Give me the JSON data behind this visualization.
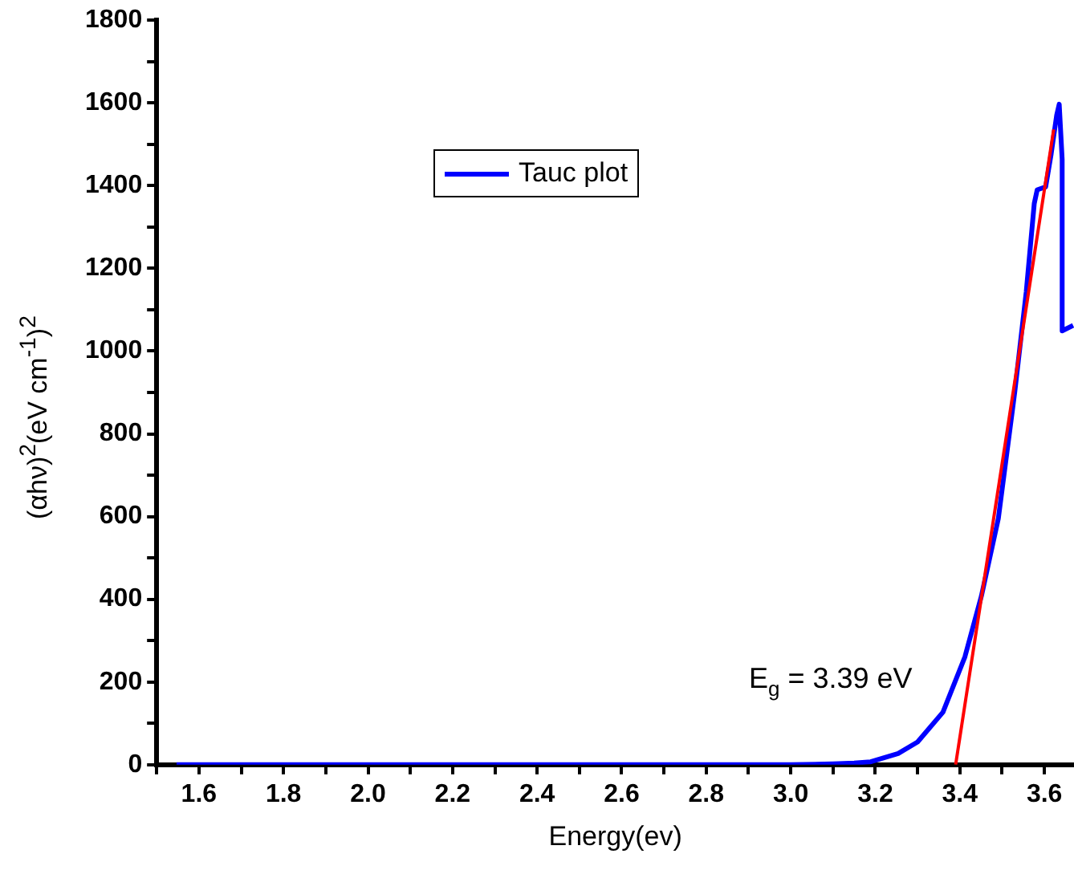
{
  "chart_data": {
    "type": "line",
    "xlabel": "Energy(ev)",
    "ylabel": "(αhν)$^{2}$(eV cm$^{-1}$)$^{2}$",
    "xlim": [
      1.5,
      3.67
    ],
    "ylim": [
      0,
      1800
    ],
    "xticks": [
      {
        "value": 1.5,
        "label": null
      },
      1.6,
      {
        "value": 1.7,
        "label": null
      },
      1.8,
      {
        "value": 1.9,
        "label": null
      },
      {
        "value": 2.0,
        "label": "2.0"
      },
      {
        "value": 2.1,
        "label": null
      },
      2.2,
      {
        "value": 2.3,
        "label": null
      },
      2.4,
      {
        "value": 2.5,
        "label": null
      },
      2.6,
      {
        "value": 2.7,
        "label": null
      },
      2.8,
      {
        "value": 2.9,
        "label": null
      },
      {
        "value": 3.0,
        "label": "3.0"
      },
      {
        "value": 3.1,
        "label": null
      },
      3.2,
      {
        "value": 3.3,
        "label": null
      },
      3.4,
      {
        "value": 3.5,
        "label": null
      },
      3.6
    ],
    "yticks": [
      0,
      {
        "value": 100,
        "label": null
      },
      200,
      {
        "value": 300,
        "label": null
      },
      400,
      {
        "value": 500,
        "label": null
      },
      600,
      {
        "value": 700,
        "label": null
      },
      800,
      {
        "value": 900,
        "label": null
      },
      1000,
      {
        "value": 1100,
        "label": null
      },
      1200,
      {
        "value": 1300,
        "label": null
      },
      1400,
      {
        "value": 1500,
        "label": null
      },
      1600,
      {
        "value": 1700,
        "label": null
      },
      1800
    ],
    "grid": false,
    "legend": "top left",
    "marker": "none",
    "line_style": "solid",
    "series": [
      {
        "name": "Tauc plot",
        "color": "#0000ff",
        "x": [
          1.547,
          2.0,
          2.5,
          3.0,
          3.1,
          3.15,
          3.189,
          3.254,
          3.3,
          3.36,
          3.412,
          3.451,
          3.491,
          3.53,
          3.557,
          3.576,
          3.583,
          3.603,
          3.616,
          3.629,
          3.635,
          3.642,
          3.642,
          3.668
        ],
        "values": [
          0,
          0,
          0,
          0,
          2,
          4,
          7,
          27,
          55,
          127,
          261,
          408,
          595,
          902,
          1143,
          1357,
          1390,
          1397,
          1477,
          1570,
          1597,
          1464,
          1049,
          1062
        ]
      },
      {
        "color": "#ff0000",
        "x": [
          3.39,
          3.622
        ],
        "values": [
          0,
          1536
        ]
      }
    ],
    "annotations": [
      {
        "text": "E$_{g}$ = 3.39 eV",
        "x": 3.39,
        "y": 0
      }
    ]
  }
}
